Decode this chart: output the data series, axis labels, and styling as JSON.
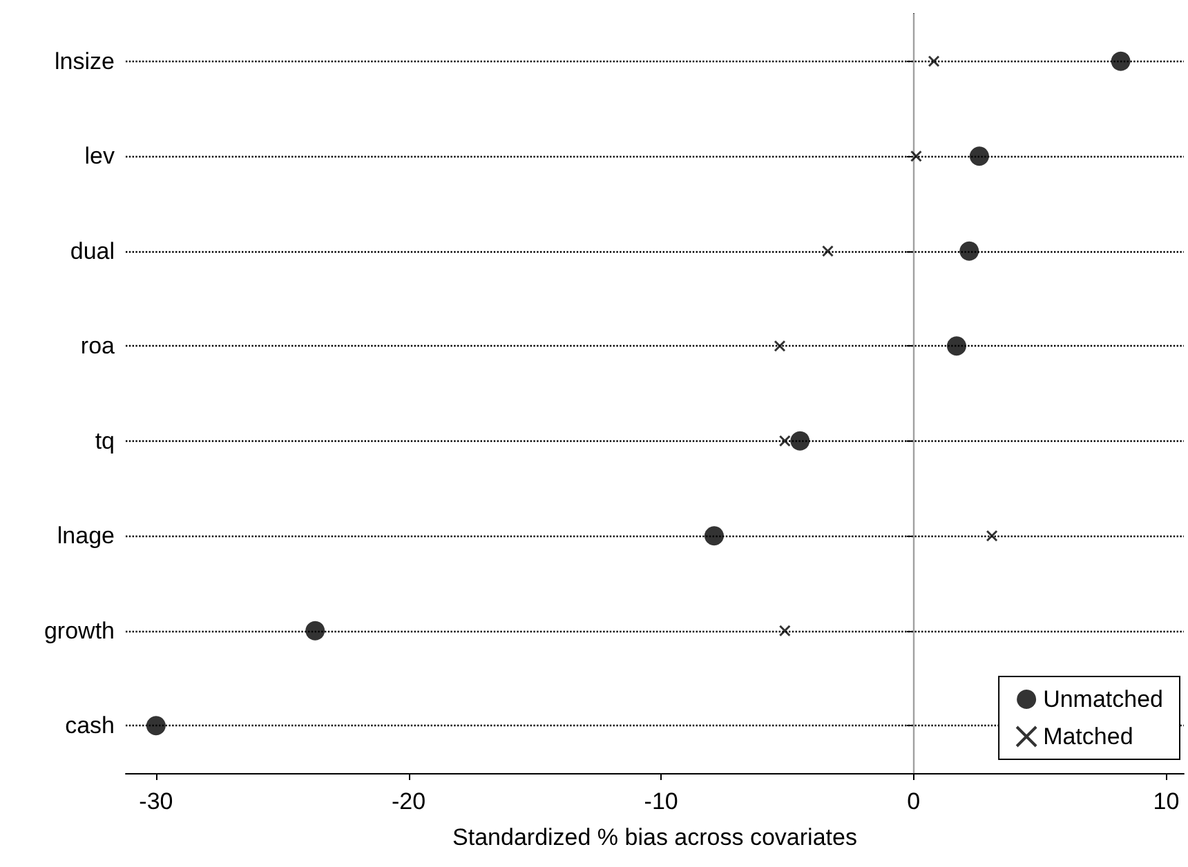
{
  "chart_data": {
    "type": "scatter",
    "orientation": "horizontal",
    "xlabel": "Standardized % bias across covariates",
    "categories": [
      "lnsize",
      "lev",
      "dual",
      "roa",
      "tq",
      "lnage",
      "growth",
      "cash"
    ],
    "series": [
      {
        "name": "Unmatched",
        "color": "#000000",
        "marker": "circle",
        "values": [
          8.2,
          2.6,
          2.2,
          1.7,
          -4.5,
          -7.9,
          -23.7,
          -30.0
        ]
      },
      {
        "name": "Matched",
        "color": "#000000",
        "marker": "cross",
        "values": [
          0.8,
          0.1,
          -3.4,
          -5.3,
          -5.1,
          3.1,
          -5.1,
          null
        ]
      }
    ],
    "xlim": [
      -31.2,
      10.7
    ],
    "xticks": [
      -30,
      -20,
      -10,
      0,
      10
    ],
    "ref_lines": [
      {
        "axis": "x",
        "value": 0,
        "color": "#a0a0a0"
      }
    ],
    "grid": "y",
    "line_style": "dotted",
    "legend": "bottom right"
  }
}
